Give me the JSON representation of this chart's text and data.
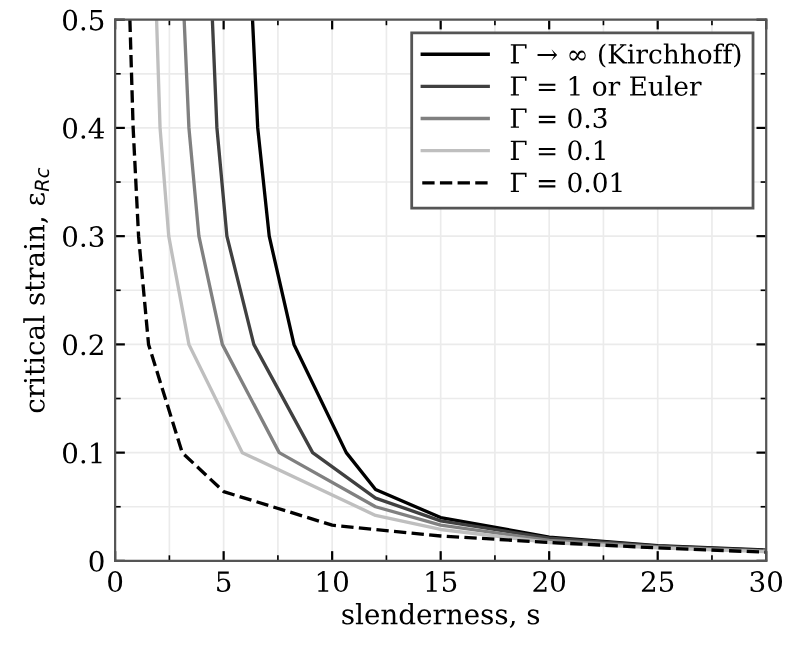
{
  "chart_data": {
    "type": "line",
    "xlabel": "slenderness, s",
    "ylabel": "critical strain, ε$_{Rc}$",
    "xlim": [
      0,
      30
    ],
    "ylim": [
      0,
      0.5
    ],
    "xticks": [
      0,
      5,
      10,
      15,
      20,
      25,
      30
    ],
    "yticks": [
      0,
      0.1,
      0.2,
      0.3,
      0.4,
      0.5
    ],
    "grid": true,
    "legend": "top right",
    "marker": "none",
    "series": [
      {
        "name": "Γ → ∞ (Kirchhoff)",
        "color": "#000000",
        "line_style": "solid",
        "x": [
          6.33,
          6.57,
          7.1,
          8.24,
          10.65,
          12,
          15,
          20,
          25,
          30
        ],
        "values": [
          0.5,
          0.4,
          0.3,
          0.2,
          0.1,
          0.066,
          0.04,
          0.022,
          0.014,
          0.01
        ]
      },
      {
        "name": "Γ = 1 or Euler",
        "color": "#404040",
        "line_style": "solid",
        "x": [
          4.48,
          4.69,
          5.15,
          6.39,
          9.1,
          12,
          15,
          20,
          25,
          30
        ],
        "values": [
          0.5,
          0.4,
          0.3,
          0.2,
          0.1,
          0.058,
          0.037,
          0.021,
          0.0135,
          0.0095
        ]
      },
      {
        "name": "Γ = 0.3̄",
        "color": "#808080",
        "line_style": "solid",
        "x": [
          3.18,
          3.4,
          3.86,
          4.94,
          7.56,
          12,
          15,
          20,
          25,
          30
        ],
        "values": [
          0.5,
          0.4,
          0.3,
          0.2,
          0.1,
          0.05,
          0.033,
          0.019,
          0.013,
          0.009
        ]
      },
      {
        "name": "Γ = 0.1",
        "color": "#bfbfbf",
        "line_style": "solid",
        "x": [
          1.91,
          2.07,
          2.47,
          3.4,
          5.86,
          12,
          15,
          20,
          25,
          30
        ],
        "values": [
          0.5,
          0.4,
          0.3,
          0.2,
          0.1,
          0.042,
          0.029,
          0.017,
          0.012,
          0.0085
        ]
      },
      {
        "name": "Γ = 0.01",
        "color": "#000000",
        "line_style": "dashed",
        "x": [
          0.68,
          0.83,
          1.08,
          1.54,
          3.09,
          5,
          10,
          15,
          20,
          25,
          30
        ],
        "values": [
          0.5,
          0.4,
          0.3,
          0.2,
          0.1,
          0.064,
          0.033,
          0.023,
          0.017,
          0.012,
          0.008
        ]
      }
    ]
  }
}
